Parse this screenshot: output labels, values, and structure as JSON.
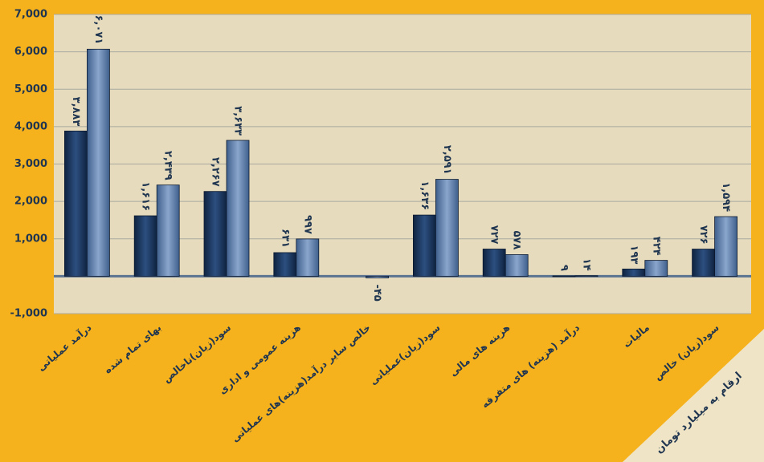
{
  "chart_data": {
    "type": "bar",
    "categories": [
      "درآمد عملیاتی",
      "بهای تمام شده",
      "سود(زیان)ناخالص",
      "هزینه عمومی و اداری",
      "خالص سایر درآمد(هزینه)های عملیاتی",
      "سود(زیان)عملیاتی",
      "هزینه های مالی",
      "درآمد (هزینه) های متفرقه",
      "مالیات",
      "سود(زیان) خالص"
    ],
    "series": [
      {
        "color": "#1d3a63",
        "values": [
          3883,
          1616,
          2267,
          631,
          null,
          1636,
          727,
          9,
          193,
          726
        ],
        "value_labels": [
          "۳,۸۸۳",
          "۱,۶۱۶",
          "۲,۲۶۷",
          "۶۳۱",
          null,
          "۱,۶۳۶",
          "۷۲۷",
          "۹",
          "۱۹۳",
          "۷۲۶"
        ]
      },
      {
        "color": "#5878a4",
        "values": [
          6071,
          2439,
          3633,
          997,
          -45,
          2591,
          578,
          14,
          424,
          1594
        ],
        "value_labels": [
          "۶,۰۷۱",
          "۲,۴۳۹",
          "۳,۶۳۳",
          "۹۹۷",
          "-۴۵",
          "۲,۵۹۱",
          "۵۷۸",
          "۱۴",
          "۴۲۴",
          "۱,۵۹۴"
        ]
      }
    ],
    "ylim": [
      -1000,
      7000
    ],
    "yticks": [
      {
        "value": -1000,
        "label": "-1,000"
      },
      {
        "value": 1000,
        "label": "1,000"
      },
      {
        "value": 2000,
        "label": "2,000"
      },
      {
        "value": 3000,
        "label": "3,000"
      },
      {
        "value": 4000,
        "label": "4,000"
      },
      {
        "value": 5000,
        "label": "5,000"
      },
      {
        "value": 6000,
        "label": "6,000"
      },
      {
        "value": 7000,
        "label": "7,000"
      }
    ],
    "grid": true,
    "annotation": "ارقام به میلیارد تومان"
  }
}
